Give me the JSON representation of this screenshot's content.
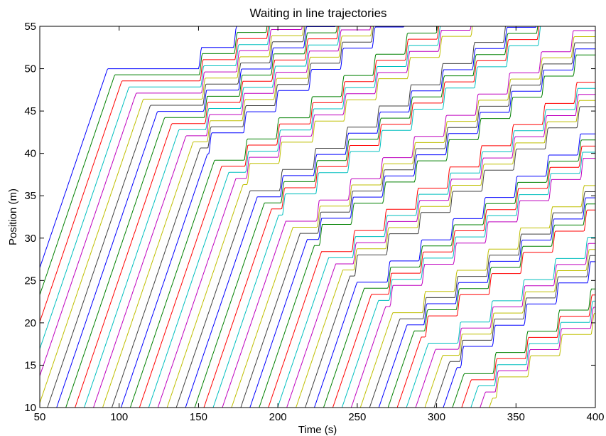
{
  "chart_data": {
    "type": "line",
    "title": "Waiting in line trajectories",
    "xlabel": "Time (s)",
    "ylabel": "Position (m)",
    "xlim": [
      50,
      400
    ],
    "ylim": [
      10,
      55
    ],
    "xticks": [
      50,
      100,
      150,
      200,
      250,
      300,
      350,
      400
    ],
    "yticks": [
      10,
      15,
      20,
      25,
      30,
      35,
      40,
      45,
      50,
      55
    ],
    "grid": false,
    "legend": "none",
    "color_cycle": [
      "#0000ff",
      "#008000",
      "#ff0000",
      "#00bfbf",
      "#bf00bf",
      "#bfbf00",
      "#404040"
    ],
    "series_description": "about 55 vehicle trajectories; each moves toward the queue at constant speed, then rests with stop-and-go steps",
    "vehicle_count": 55,
    "queue_head_position": 50,
    "vehicle_spacing": 0.72,
    "approach_speed": 0.55,
    "first_arrival_time": 20,
    "arrival_interval": 5.8,
    "release_times": [
      150,
      172,
      192,
      213,
      233,
      253,
      273,
      293,
      313,
      333,
      353,
      373,
      393
    ]
  }
}
